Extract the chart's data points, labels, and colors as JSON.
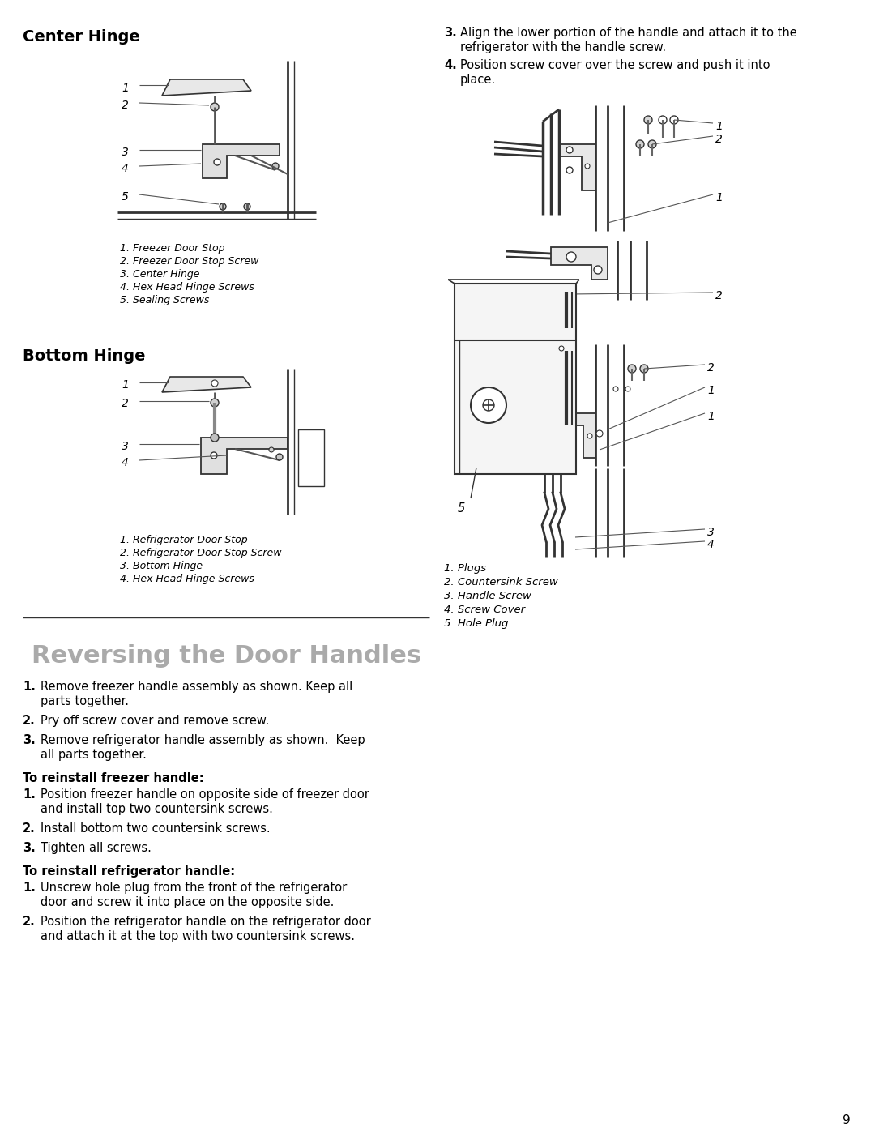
{
  "background_color": "#ffffff",
  "page_number": "9",
  "title_center_hinge": "Center Hinge",
  "title_bottom_hinge": "Bottom Hinge",
  "title_reversing": "Reversing the Door Handles",
  "center_hinge_labels": [
    "1. Freezer Door Stop",
    "2. Freezer Door Stop Screw",
    "3. Center Hinge",
    "4. Hex Head Hinge Screws",
    "5. Sealing Screws"
  ],
  "bottom_hinge_labels": [
    "1. Refrigerator Door Stop",
    "2. Refrigerator Door Stop Screw",
    "3. Bottom Hinge",
    "4. Hex Head Hinge Screws"
  ],
  "right_labels": [
    "1. Plugs",
    "2. Countersink Screw",
    "3. Handle Screw",
    "4. Screw Cover",
    "5. Hole Plug"
  ],
  "step3_bold": "3.",
  "step3_text": "Align the lower portion of the handle and attach it to the",
  "step3_text2": "refrigerator with the handle screw.",
  "step4_bold": "4.",
  "step4_text": "Position screw cover over the screw and push it into",
  "step4_text2": "place.",
  "rev_steps": [
    [
      "1.",
      "Remove freezer handle assembly as shown. Keep all",
      "parts together."
    ],
    [
      "2.",
      "Pry off screw cover and remove screw.",
      ""
    ],
    [
      "3.",
      "Remove refrigerator handle assembly as shown.  Keep",
      "all parts together."
    ]
  ],
  "freezer_handle_title": "To reinstall freezer handle:",
  "freezer_steps": [
    [
      "1.",
      "Position freezer handle on opposite side of freezer door",
      "and install top two countersink screws."
    ],
    [
      "2.",
      "Install bottom two countersink screws.",
      ""
    ],
    [
      "3.",
      "Tighten all screws.",
      ""
    ]
  ],
  "fridge_handle_title": "To reinstall refrigerator handle:",
  "fridge_steps": [
    [
      "1.",
      "Unscrew hole plug from the front of the refrigerator",
      "door and screw it into place on the opposite side."
    ],
    [
      "2.",
      "Position the refrigerator handle on the refrigerator door",
      "and attach it at the top with two countersink screws."
    ]
  ]
}
